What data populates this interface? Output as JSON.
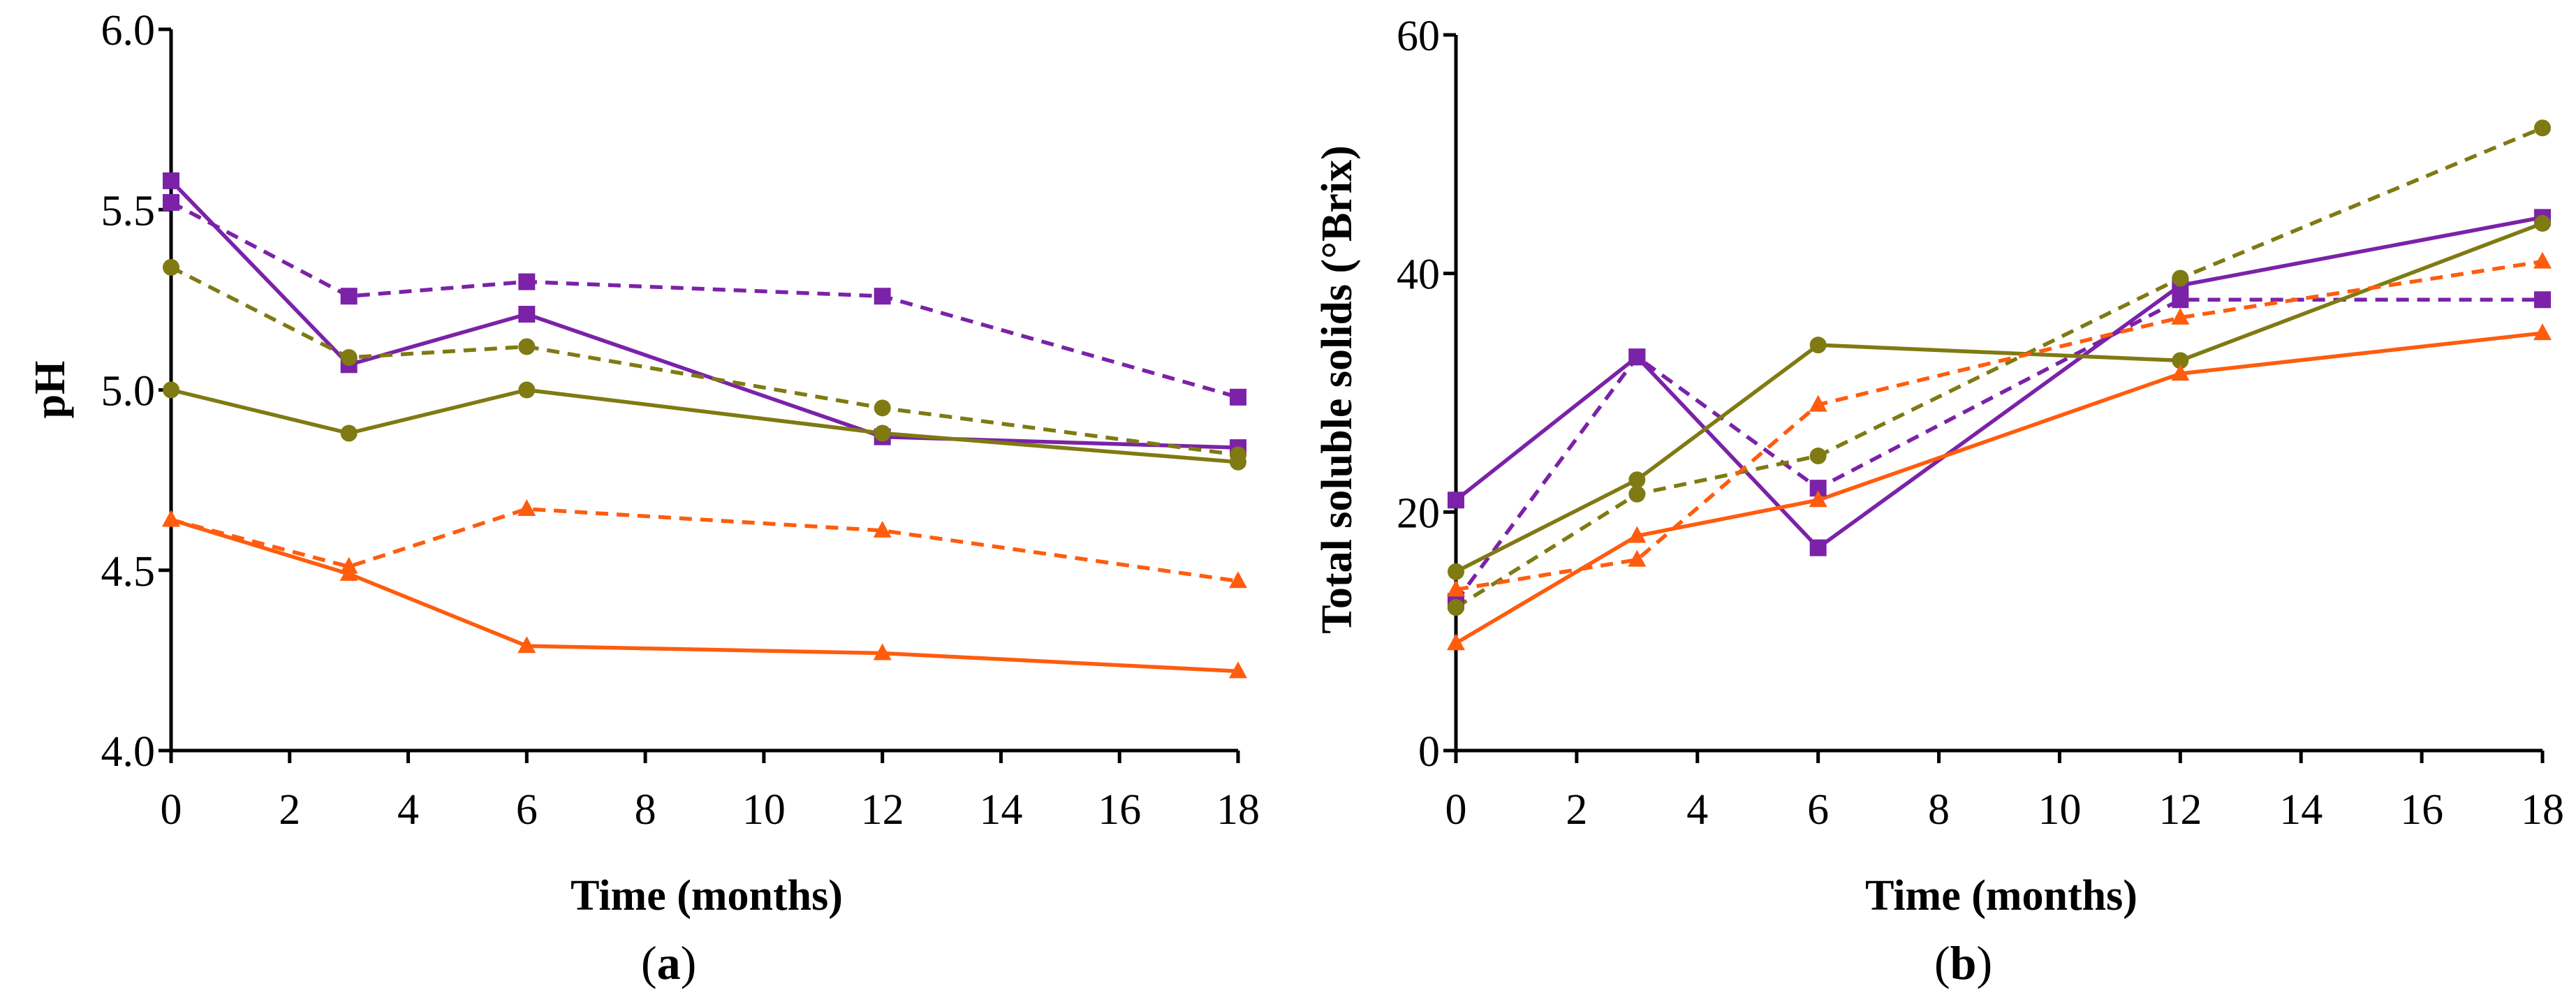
{
  "chart_data": [
    {
      "type": "line",
      "panel": "a",
      "panel_label": {
        "open": "(",
        "letter": "a",
        "close": ")"
      },
      "xlabel": "Time (months)",
      "ylabel": "pH",
      "xlim": [
        0,
        18
      ],
      "ylim": [
        4.0,
        6.0
      ],
      "x_ticks": [
        0,
        2,
        4,
        6,
        8,
        10,
        12,
        14,
        16,
        18
      ],
      "y_ticks": [
        4.0,
        4.5,
        5.0,
        5.5,
        6.0
      ],
      "y_tick_labels": [
        "4.0",
        "4.5",
        "5.0",
        "5.5",
        "6.0"
      ],
      "grid": false,
      "x": [
        0,
        3,
        6,
        12,
        18
      ],
      "series": [
        {
          "name": "purple-solid",
          "color": "#7B22A8",
          "dash": false,
          "marker": "square",
          "values": [
            5.58,
            5.07,
            5.21,
            4.87,
            4.84
          ]
        },
        {
          "name": "purple-dashed",
          "color": "#7B22A8",
          "dash": true,
          "marker": "square",
          "values": [
            5.52,
            5.26,
            5.3,
            5.26,
            4.98
          ]
        },
        {
          "name": "olive-solid",
          "color": "#7F7A12",
          "dash": false,
          "marker": "circle",
          "values": [
            5.0,
            4.88,
            5.0,
            4.88,
            4.8
          ]
        },
        {
          "name": "olive-dashed",
          "color": "#7F7A12",
          "dash": true,
          "marker": "circle",
          "values": [
            5.34,
            5.09,
            5.12,
            4.95,
            4.82
          ]
        },
        {
          "name": "orange-solid",
          "color": "#FF5C0E",
          "dash": false,
          "marker": "triangle",
          "values": [
            4.64,
            4.49,
            4.29,
            4.27,
            4.22
          ]
        },
        {
          "name": "orange-dashed",
          "color": "#FF5C0E",
          "dash": true,
          "marker": "triangle",
          "values": [
            4.64,
            4.51,
            4.67,
            4.61,
            4.47
          ]
        }
      ]
    },
    {
      "type": "line",
      "panel": "b",
      "panel_label": {
        "open": "(",
        "letter": "b",
        "close": ")"
      },
      "xlabel": "Time (months)",
      "ylabel": "Total soluble solids (°Brix)",
      "xlim": [
        0,
        18
      ],
      "ylim": [
        0,
        60
      ],
      "x_ticks": [
        0,
        2,
        4,
        6,
        8,
        10,
        12,
        14,
        16,
        18
      ],
      "y_ticks": [
        0,
        20,
        40,
        60
      ],
      "y_tick_labels": [
        "0",
        "20",
        "40",
        "60"
      ],
      "grid": false,
      "x": [
        0,
        3,
        6,
        12,
        18
      ],
      "series": [
        {
          "name": "purple-solid",
          "color": "#7B22A8",
          "dash": false,
          "marker": "square",
          "values": [
            21,
            33,
            17,
            39,
            44.7
          ]
        },
        {
          "name": "purple-dashed",
          "color": "#7B22A8",
          "dash": true,
          "marker": "square",
          "values": [
            12.5,
            33,
            22,
            37.8,
            37.8
          ]
        },
        {
          "name": "olive-solid",
          "color": "#7F7A12",
          "dash": false,
          "marker": "circle",
          "values": [
            15,
            22.7,
            34,
            32.7,
            44.2
          ]
        },
        {
          "name": "olive-dashed",
          "color": "#7F7A12",
          "dash": true,
          "marker": "circle",
          "values": [
            12,
            21.5,
            24.7,
            39.6,
            52.2
          ]
        },
        {
          "name": "orange-solid",
          "color": "#FF5C0E",
          "dash": false,
          "marker": "triangle",
          "values": [
            9,
            18,
            21,
            31.6,
            35
          ]
        },
        {
          "name": "orange-dashed",
          "color": "#FF5C0E",
          "dash": true,
          "marker": "triangle",
          "values": [
            13.5,
            16,
            29,
            36.3,
            41
          ]
        }
      ]
    }
  ]
}
